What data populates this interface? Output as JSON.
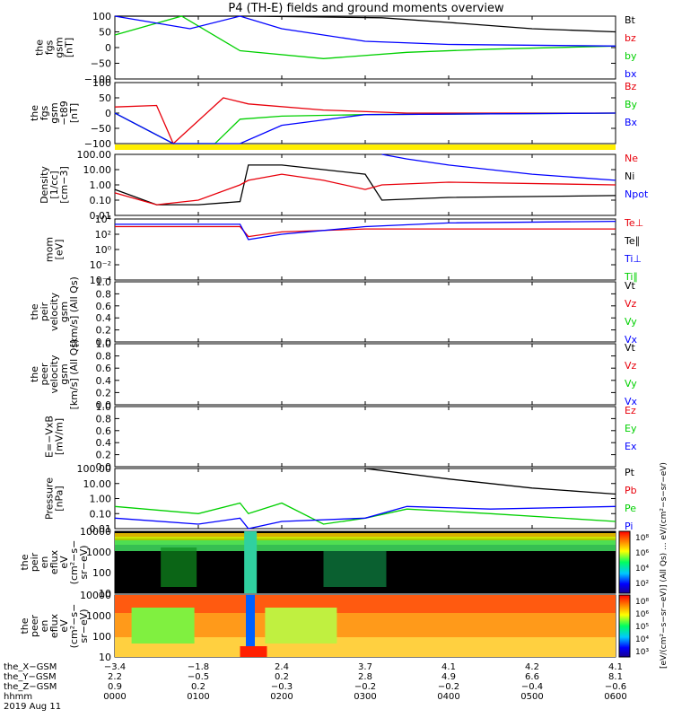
{
  "title": "P4 (TH-E) fields and ground moments overview",
  "colors": {
    "black": "#000000",
    "red": "#e8000b",
    "green": "#00d000",
    "blue": "#0000ff",
    "yellow": "#ffee00"
  },
  "panels": [
    {
      "id": "fgs-gsm",
      "ylabel": [
        "the",
        "fgs",
        "gsm",
        "[nT]"
      ],
      "ticks": [
        "100",
        "50",
        "0",
        "−50",
        "−100"
      ],
      "legend": [
        {
          "text": "Bt",
          "color": "black"
        },
        {
          "text": "bz",
          "color": "red"
        },
        {
          "text": "by",
          "color": "green"
        },
        {
          "text": "bx",
          "color": "blue"
        }
      ]
    },
    {
      "id": "fgs-gsm-t89",
      "ylabel": [
        "the",
        "fgs",
        "gsm",
        "−t89",
        "[nT]"
      ],
      "ticks": [
        "100",
        "50",
        "0",
        "−50",
        "−100"
      ],
      "legend": [
        {
          "text": "Bz",
          "color": "red"
        },
        {
          "text": "By",
          "color": "green"
        },
        {
          "text": "Bx",
          "color": "blue"
        }
      ]
    },
    {
      "id": "density",
      "ylabel": [
        "Density",
        "[1/cc]",
        "[cm−3]"
      ],
      "ticks": [
        "100.00",
        "10.00",
        "1.00",
        "0.10",
        "0.01"
      ],
      "legend": [
        {
          "text": "Ne",
          "color": "red"
        },
        {
          "text": "Ni",
          "color": "black"
        },
        {
          "text": "Npot",
          "color": "blue"
        }
      ]
    },
    {
      "id": "temperature",
      "ylabel": [
        "mom",
        "[eV]"
      ],
      "ticks": [
        "10⁴",
        "10²",
        "10⁰",
        "10⁻²",
        "10⁻⁴"
      ],
      "legend": [
        {
          "text": "Te⊥",
          "color": "red"
        },
        {
          "text": "Te∥",
          "color": "black"
        },
        {
          "text": "Ti⊥",
          "color": "blue"
        },
        {
          "text": "Ti∥",
          "color": "green"
        }
      ]
    },
    {
      "id": "peir-velocity",
      "ylabel": [
        "the",
        "peir",
        "velocity",
        "gsm",
        "[km/s] (All Qs)"
      ],
      "ticks": [
        "1.0",
        "0.8",
        "0.6",
        "0.4",
        "0.2",
        "0.0"
      ],
      "legend": [
        {
          "text": "Vt",
          "color": "black"
        },
        {
          "text": "Vz",
          "color": "red"
        },
        {
          "text": "Vy",
          "color": "green"
        },
        {
          "text": "Vx",
          "color": "blue"
        }
      ]
    },
    {
      "id": "peer-velocity",
      "ylabel": [
        "the",
        "peer",
        "velocity",
        "gsm",
        "[km/s] (All Qs)"
      ],
      "ticks": [
        "1.0",
        "0.8",
        "0.6",
        "0.4",
        "0.2",
        "0.0"
      ],
      "legend": [
        {
          "text": "Vt",
          "color": "black"
        },
        {
          "text": "Vz",
          "color": "red"
        },
        {
          "text": "Vy",
          "color": "green"
        },
        {
          "text": "Vx",
          "color": "blue"
        }
      ]
    },
    {
      "id": "efield",
      "ylabel": [
        "E=−VxB",
        "[mV/m]"
      ],
      "ticks": [
        "1.0",
        "0.8",
        "0.6",
        "0.4",
        "0.2",
        "0.0"
      ],
      "legend": [
        {
          "text": "Ez",
          "color": "red"
        },
        {
          "text": "Ey",
          "color": "green"
        },
        {
          "text": "Ex",
          "color": "blue"
        }
      ]
    },
    {
      "id": "pressure",
      "ylabel": [
        "Pressure",
        "[nPa]"
      ],
      "ticks": [
        "100.00",
        "10.00",
        "1.00",
        "0.10",
        "0.01"
      ],
      "legend": [
        {
          "text": "Pt",
          "color": "black"
        },
        {
          "text": "Pb",
          "color": "red"
        },
        {
          "text": "Pe",
          "color": "green"
        },
        {
          "text": "Pi",
          "color": "blue"
        }
      ]
    },
    {
      "id": "peir-eflux",
      "ylabel": [
        "the",
        "peir",
        "en",
        "eflux",
        "eV",
        "(cm²−s−",
        "sr−eV)"
      ],
      "ticks": [
        "10000",
        "1000",
        "100",
        "10"
      ],
      "legend": []
    },
    {
      "id": "peer-eflux",
      "ylabel": [
        "the",
        "peer",
        "en",
        "eflux",
        "eV",
        "(cm²−s−",
        "sr−eV)"
      ],
      "ticks": [
        "10000",
        "1000",
        "100",
        "10"
      ],
      "legend": []
    }
  ],
  "colorbar": {
    "upper_ticks": [
      "10⁸",
      "10⁶",
      "10⁴",
      "10²"
    ],
    "lower_ticks": [
      "10⁸",
      "10⁶",
      "10⁵",
      "10⁴",
      "10³"
    ],
    "label": "[eV/(cm²−s−sr−eV)] (All Qs) ... eV/(cm²−s−sr−eV)"
  },
  "footer": {
    "rows": [
      {
        "label": "the_X−GSM",
        "values": [
          "−3.4",
          "−1.8",
          "2.4",
          "3.7",
          "4.1",
          "4.2",
          "4.1"
        ]
      },
      {
        "label": "the_Y−GSM",
        "values": [
          "2.2",
          "−0.5",
          "0.2",
          "2.8",
          "4.9",
          "6.6",
          "8.1"
        ]
      },
      {
        "label": "the_Z−GSM",
        "values": [
          "0.9",
          "0.2",
          "−0.3",
          "−0.2",
          "−0.2",
          "−0.4",
          "−0.6"
        ]
      },
      {
        "label": "hhmm",
        "values": [
          "0000",
          "0100",
          "0200",
          "0300",
          "0400",
          "0500",
          "0600"
        ]
      }
    ],
    "date": "2019 Aug 11"
  },
  "chart_data": {
    "type": "line",
    "title": "P4 (TH-E) fields and ground moments overview",
    "x": {
      "label": "hhmm",
      "ticks": [
        "0000",
        "0100",
        "0200",
        "0300",
        "0400",
        "0500",
        "0600"
      ],
      "date": "2019 Aug 11"
    },
    "series": [
      {
        "panel": "fgs-gsm",
        "name": "Bt",
        "points": [
          [
            0.0,
            100
          ],
          [
            1.6,
            100
          ],
          [
            3.2,
            95
          ],
          [
            4.0,
            80
          ],
          [
            5.0,
            60
          ],
          [
            6.0,
            50
          ]
        ]
      },
      {
        "panel": "fgs-gsm",
        "name": "by",
        "points": [
          [
            0.0,
            40
          ],
          [
            0.8,
            100
          ],
          [
            1.5,
            -10
          ],
          [
            2.5,
            -35
          ],
          [
            3.5,
            -15
          ],
          [
            4.5,
            -5
          ],
          [
            6.0,
            5
          ]
        ]
      },
      {
        "panel": "fgs-gsm",
        "name": "bx",
        "points": [
          [
            0.0,
            100
          ],
          [
            0.9,
            60
          ],
          [
            1.5,
            100
          ],
          [
            2.0,
            60
          ],
          [
            3.0,
            20
          ],
          [
            4.0,
            10
          ],
          [
            6.0,
            5
          ]
        ]
      },
      {
        "panel": "fgs-gsm-t89",
        "name": "Bz",
        "points": [
          [
            0.0,
            20
          ],
          [
            0.5,
            25
          ],
          [
            0.7,
            -100
          ],
          [
            1.3,
            50
          ],
          [
            1.6,
            30
          ],
          [
            2.5,
            10
          ],
          [
            3.5,
            0
          ],
          [
            6.0,
            0
          ]
        ]
      },
      {
        "panel": "fgs-gsm-t89",
        "name": "By",
        "points": [
          [
            0.0,
            0
          ],
          [
            0.7,
            -100
          ],
          [
            1.2,
            -100
          ],
          [
            1.5,
            -20
          ],
          [
            2.0,
            -10
          ],
          [
            3.0,
            -5
          ],
          [
            6.0,
            0
          ]
        ]
      },
      {
        "panel": "fgs-gsm-t89",
        "name": "Bx",
        "points": [
          [
            0.0,
            0
          ],
          [
            0.7,
            -100
          ],
          [
            1.5,
            -100
          ],
          [
            2.0,
            -40
          ],
          [
            3.0,
            -5
          ],
          [
            6.0,
            0
          ]
        ]
      },
      {
        "panel": "density",
        "name": "Ni",
        "points": [
          [
            0.0,
            0.5
          ],
          [
            0.5,
            0.05
          ],
          [
            1.0,
            0.05
          ],
          [
            1.5,
            0.08
          ],
          [
            1.6,
            20
          ],
          [
            2.0,
            20
          ],
          [
            2.5,
            10
          ],
          [
            3.0,
            5
          ],
          [
            3.2,
            0.1
          ],
          [
            4.0,
            0.15
          ],
          [
            6.0,
            0.2
          ]
        ]
      },
      {
        "panel": "density",
        "name": "Ne",
        "points": [
          [
            0.0,
            0.3
          ],
          [
            0.5,
            0.05
          ],
          [
            1.0,
            0.1
          ],
          [
            1.5,
            1.0
          ],
          [
            1.6,
            2.0
          ],
          [
            2.0,
            5.0
          ],
          [
            2.5,
            2.0
          ],
          [
            3.0,
            0.5
          ],
          [
            3.2,
            1.0
          ],
          [
            4.0,
            1.5
          ],
          [
            6.0,
            1.0
          ]
        ]
      },
      {
        "panel": "density",
        "name": "Npot",
        "points": [
          [
            3.2,
            100
          ],
          [
            3.5,
            50
          ],
          [
            4.0,
            20
          ],
          [
            5.0,
            5
          ],
          [
            6.0,
            2
          ]
        ]
      },
      {
        "panel": "temperature",
        "name": "Te⊥",
        "points": [
          [
            0.0,
            1000
          ],
          [
            1.5,
            1000
          ],
          [
            1.6,
            50
          ],
          [
            2.0,
            200
          ],
          [
            3.0,
            500
          ],
          [
            6.0,
            500
          ]
        ]
      },
      {
        "panel": "temperature",
        "name": "Ti⊥",
        "points": [
          [
            0.0,
            2000
          ],
          [
            1.5,
            2000
          ],
          [
            1.6,
            20
          ],
          [
            2.0,
            100
          ],
          [
            3.0,
            1000
          ],
          [
            4.0,
            3000
          ],
          [
            6.0,
            5000
          ]
        ]
      },
      {
        "panel": "pressure",
        "name": "Pt",
        "points": [
          [
            3.0,
            100
          ],
          [
            4.0,
            20
          ],
          [
            5.0,
            5
          ],
          [
            6.0,
            2
          ]
        ]
      },
      {
        "panel": "pressure",
        "name": "Pe",
        "points": [
          [
            0.0,
            0.3
          ],
          [
            1.0,
            0.1
          ],
          [
            1.5,
            0.5
          ],
          [
            1.6,
            0.1
          ],
          [
            2.0,
            0.5
          ],
          [
            2.5,
            0.02
          ],
          [
            3.0,
            0.05
          ],
          [
            3.5,
            0.2
          ],
          [
            4.5,
            0.1
          ],
          [
            6.0,
            0.03
          ]
        ]
      },
      {
        "panel": "pressure",
        "name": "Pi",
        "points": [
          [
            0.0,
            0.05
          ],
          [
            1.0,
            0.02
          ],
          [
            1.5,
            0.05
          ],
          [
            1.6,
            0.01
          ],
          [
            2.0,
            0.03
          ],
          [
            3.0,
            0.05
          ],
          [
            3.5,
            0.3
          ],
          [
            4.5,
            0.2
          ],
          [
            6.0,
            0.3
          ]
        ]
      }
    ]
  }
}
